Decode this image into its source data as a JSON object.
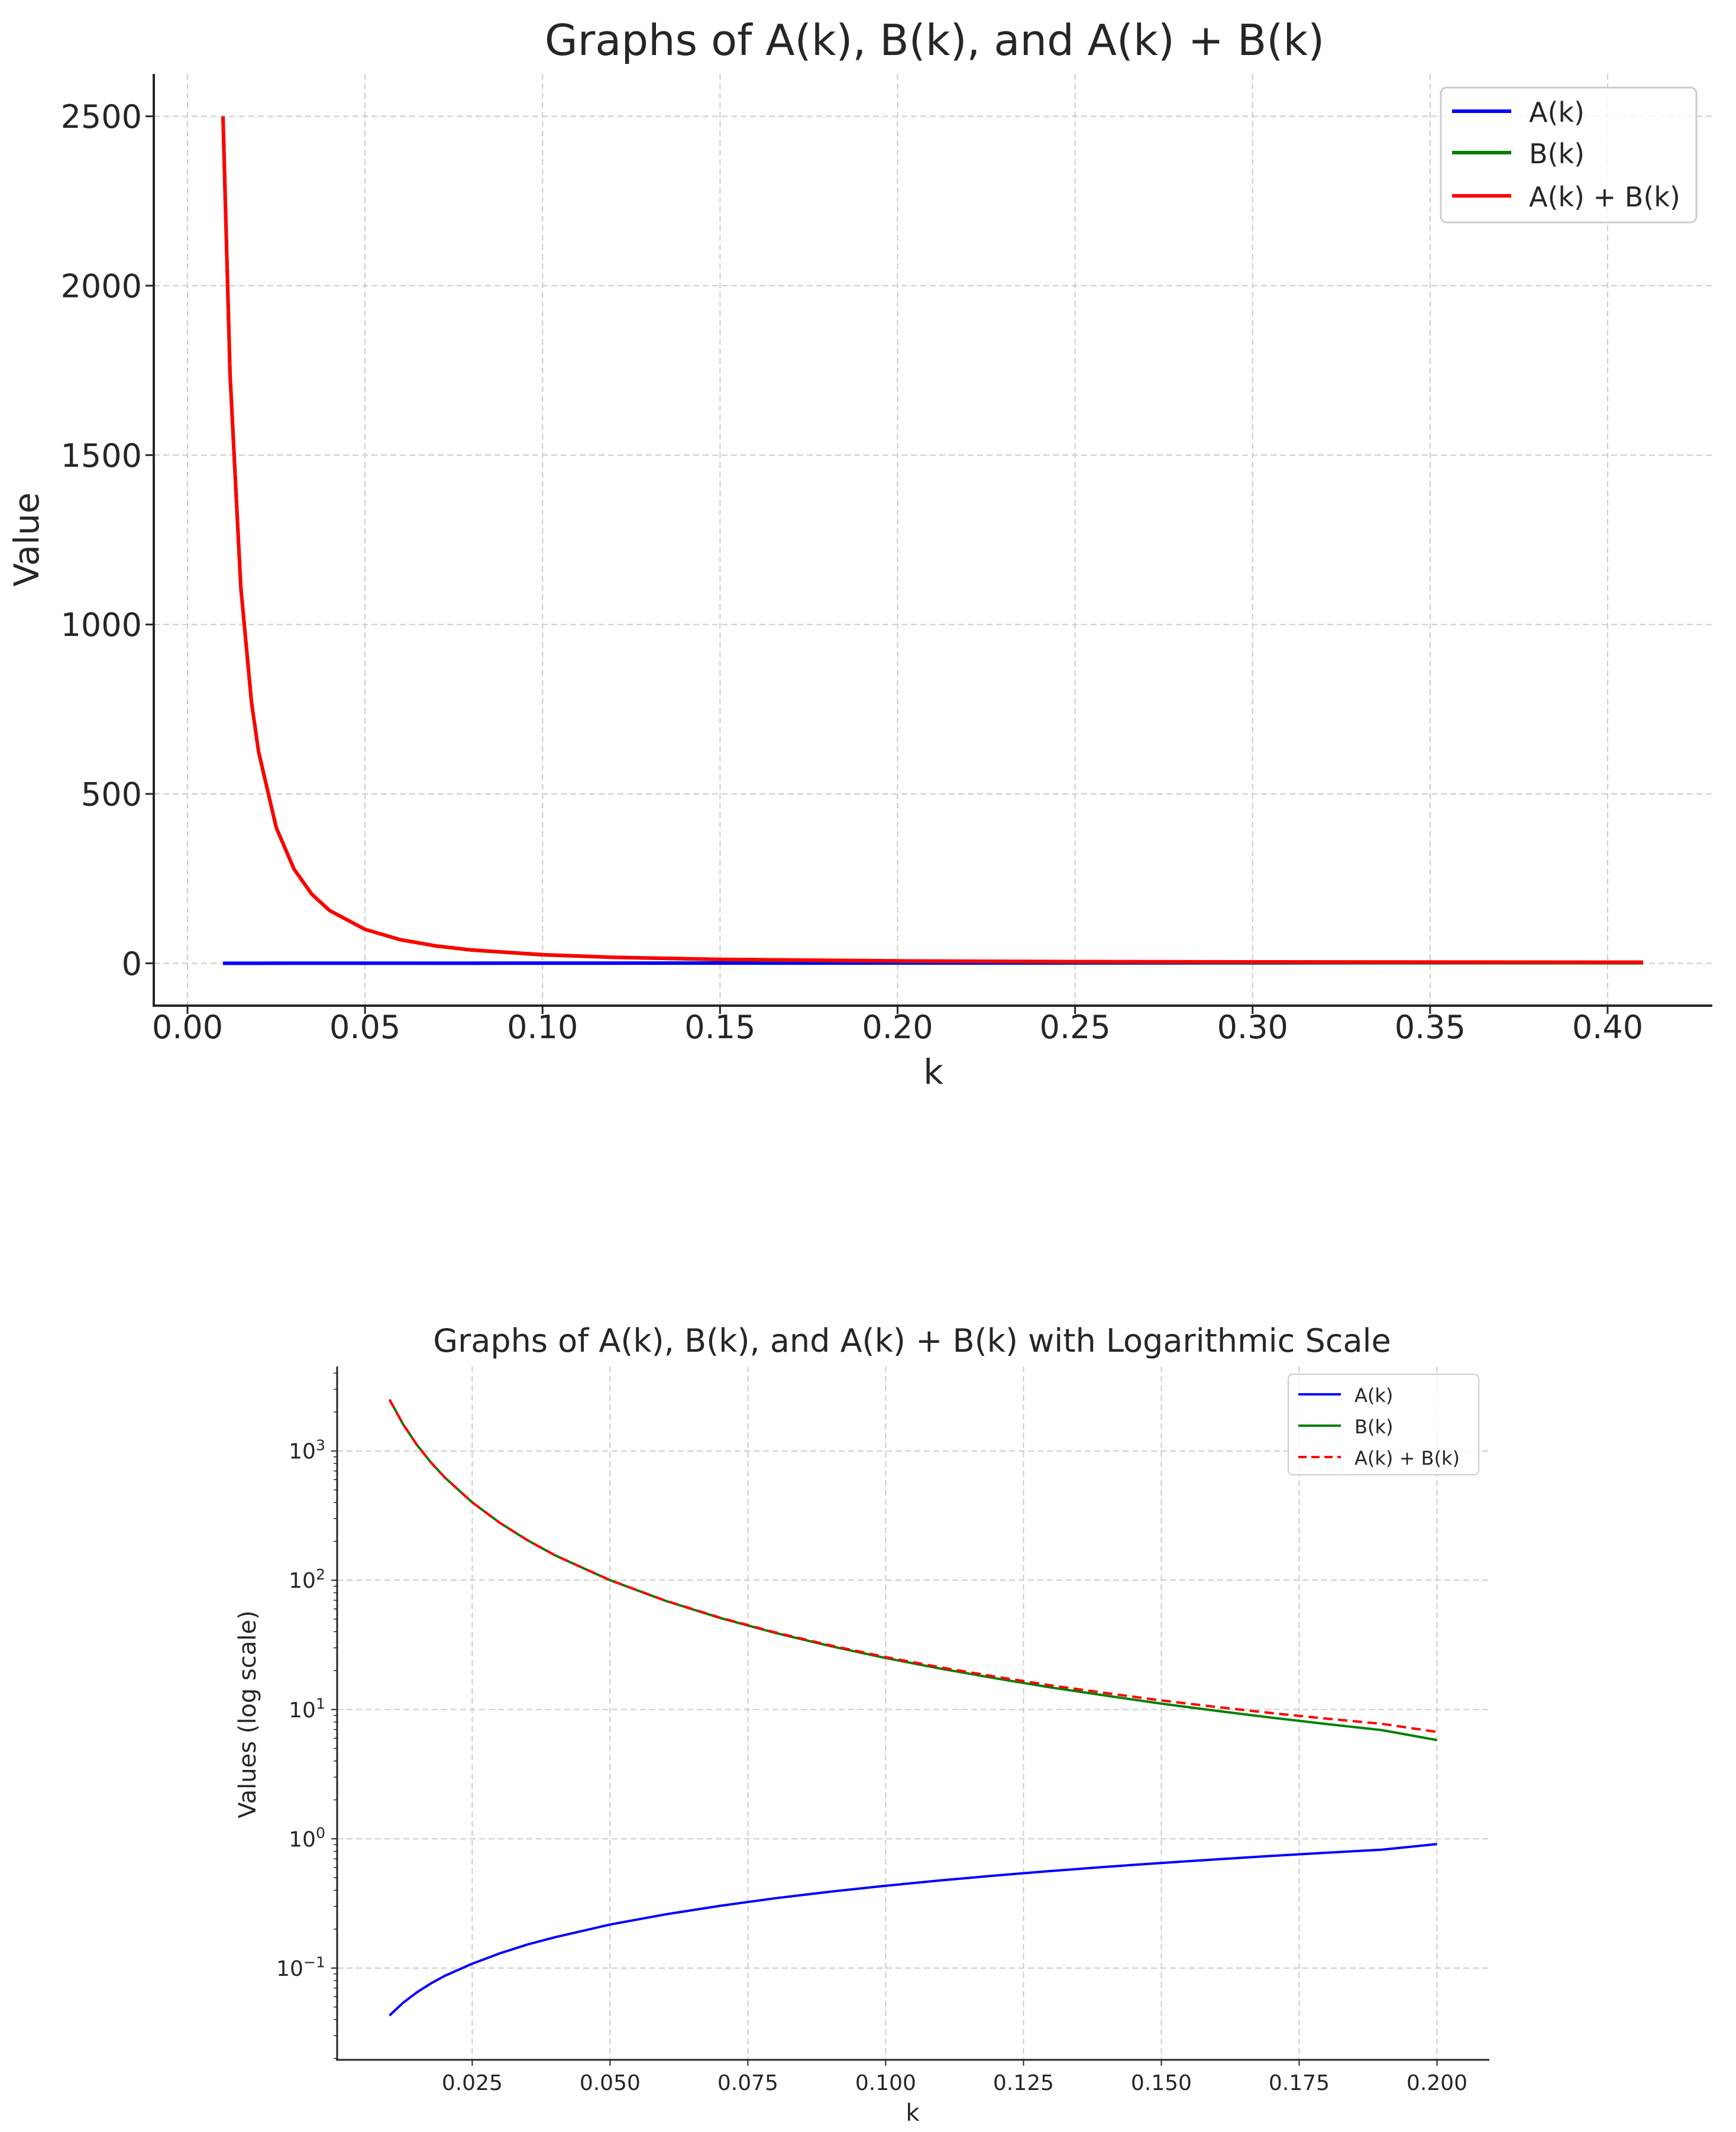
{
  "chart_data": [
    {
      "type": "line",
      "title": "Graphs of A(k), B(k), and A(k) + B(k)",
      "xlabel": "k",
      "ylabel": "Value",
      "xlim": [
        -0.0095,
        0.4295
      ],
      "ylim": [
        -125,
        2625
      ],
      "grid": true,
      "legend_position": "top-right",
      "x_ticks": [
        0.0,
        0.05,
        0.1,
        0.15,
        0.2,
        0.25,
        0.3,
        0.35,
        0.4
      ],
      "x_tick_labels": [
        "0.00",
        "0.05",
        "0.10",
        "0.15",
        "0.20",
        "0.25",
        "0.30",
        "0.35",
        "0.40"
      ],
      "y_ticks": [
        0,
        500,
        1000,
        1500,
        2000,
        2500
      ],
      "y_tick_labels": [
        "0",
        "500",
        "1000",
        "1500",
        "2000",
        "2500"
      ],
      "x": [
        0.01,
        0.012,
        0.015,
        0.018,
        0.02,
        0.025,
        0.03,
        0.035,
        0.04,
        0.05,
        0.06,
        0.07,
        0.08,
        0.1,
        0.12,
        0.15,
        0.2,
        0.25,
        0.3,
        0.35,
        0.41
      ],
      "series": [
        {
          "name": "A(k)",
          "color": "#0000ff",
          "style": "solid",
          "values": [
            0.046,
            0.055,
            0.069,
            0.083,
            0.092,
            0.115,
            0.138,
            0.161,
            0.184,
            0.23,
            0.276,
            0.322,
            0.368,
            0.46,
            0.552,
            0.69,
            0.92,
            1.15,
            1.38,
            1.61,
            1.886
          ]
        },
        {
          "name": "B(k)",
          "color": "#008000",
          "style": "solid",
          "values": [
            2500,
            1736,
            1111,
            772,
            625,
            400,
            278,
            204,
            156,
            100,
            69.4,
            51.0,
            39.1,
            25.0,
            17.4,
            11.1,
            6.25,
            4.0,
            2.78,
            2.04,
            1.49
          ]
        },
        {
          "name": "A(k) + B(k)",
          "color": "#ff0000",
          "style": "solid",
          "values": [
            2500.05,
            1736.06,
            1111.07,
            772.08,
            625.09,
            400.12,
            278.14,
            204.16,
            156.18,
            100.23,
            69.68,
            51.32,
            39.43,
            25.46,
            17.91,
            11.8,
            7.17,
            5.15,
            4.16,
            3.65,
            3.38
          ]
        }
      ]
    },
    {
      "type": "line",
      "title": "Graphs of A(k), B(k), and A(k) + B(k) with Logarithmic Scale",
      "xlabel": "k",
      "ylabel": "Values (log scale)",
      "xscale": "linear",
      "yscale": "log",
      "xlim": [
        0.0005,
        0.2095
      ],
      "ylim": [
        0.0195,
        4500
      ],
      "grid": true,
      "legend_position": "top-right",
      "x_ticks": [
        0.025,
        0.05,
        0.075,
        0.1,
        0.125,
        0.15,
        0.175,
        0.2
      ],
      "x_tick_labels": [
        "0.025",
        "0.050",
        "0.075",
        "0.100",
        "0.125",
        "0.150",
        "0.175",
        "0.200"
      ],
      "y_ticks": [
        0.1,
        1,
        10,
        100,
        1000
      ],
      "y_tick_labels": [
        {
          "base": "10",
          "exp": "−1"
        },
        {
          "base": "10",
          "exp": "0"
        },
        {
          "base": "10",
          "exp": "1"
        },
        {
          "base": "10",
          "exp": "2"
        },
        {
          "base": "10",
          "exp": "3"
        }
      ],
      "x": [
        0.01,
        0.0125,
        0.015,
        0.0175,
        0.02,
        0.025,
        0.03,
        0.035,
        0.04,
        0.05,
        0.06,
        0.07,
        0.08,
        0.09,
        0.1,
        0.11,
        0.12,
        0.13,
        0.14,
        0.15,
        0.16,
        0.17,
        0.18,
        0.19,
        0.2
      ],
      "series": [
        {
          "name": "A(k)",
          "color": "#0000ff",
          "style": "solid",
          "values": [
            0.043,
            0.054,
            0.065,
            0.076,
            0.087,
            0.108,
            0.13,
            0.152,
            0.173,
            0.217,
            0.26,
            0.303,
            0.347,
            0.39,
            0.433,
            0.477,
            0.52,
            0.563,
            0.607,
            0.65,
            0.693,
            0.737,
            0.78,
            0.823,
            0.91
          ]
        },
        {
          "name": "B(k)",
          "color": "#008000",
          "style": "solid",
          "values": [
            2500,
            1600,
            1111,
            816,
            625,
            400,
            278,
            204,
            156,
            100,
            69.4,
            51.0,
            39.1,
            30.9,
            25.0,
            20.7,
            17.4,
            14.8,
            12.8,
            11.1,
            9.77,
            8.65,
            7.72,
            6.93,
            5.8
          ]
        },
        {
          "name": "A(k) + B(k)",
          "color": "#ff0000",
          "style": "dashed",
          "values": [
            2500.04,
            1600.05,
            1111.07,
            816.08,
            625.09,
            400.11,
            278.13,
            204.15,
            156.17,
            100.22,
            69.66,
            51.3,
            39.45,
            31.29,
            25.43,
            21.18,
            17.92,
            15.36,
            13.41,
            11.75,
            10.46,
            9.39,
            8.5,
            7.75,
            6.71
          ]
        }
      ]
    }
  ]
}
